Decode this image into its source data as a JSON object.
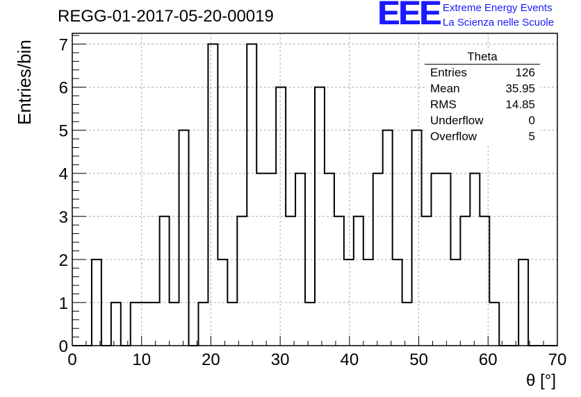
{
  "title": "REGG-01-2017-05-20-00019",
  "logo": {
    "mark": "EEE",
    "line1": "Extreme Energy Events",
    "line2": "La Scienza nelle Scuole",
    "color": "#1a1aff"
  },
  "stats": {
    "name": "Theta",
    "rows": [
      {
        "label": "Entries",
        "value": "126"
      },
      {
        "label": "Mean",
        "value": "35.95"
      },
      {
        "label": "RMS",
        "value": "14.85"
      },
      {
        "label": "Underflow",
        "value": "0"
      },
      {
        "label": "Overflow",
        "value": "5"
      }
    ]
  },
  "chart_data": {
    "type": "histogram",
    "xlabel": "θ [°]",
    "ylabel": "Entries/bin",
    "xlim": [
      0,
      70
    ],
    "ylim": [
      0,
      7.25
    ],
    "bin_width": 1.4,
    "bin_edges_start": 0,
    "counts": [
      0,
      0,
      2,
      0,
      1,
      0,
      1,
      1,
      1,
      3,
      1,
      5,
      0,
      1,
      7,
      2,
      1,
      3,
      7,
      4,
      4,
      6,
      3,
      4,
      1,
      6,
      4,
      3,
      2,
      3,
      2,
      4,
      5,
      2,
      1,
      5,
      3,
      4,
      4,
      2,
      3,
      4,
      3,
      1,
      0,
      0,
      2,
      0,
      0,
      0
    ],
    "xticks": [
      0,
      10,
      20,
      30,
      40,
      50,
      60,
      70
    ],
    "yticks": [
      0,
      1,
      2,
      3,
      4,
      5,
      6,
      7
    ],
    "grid": true,
    "line_color": "#000000"
  }
}
